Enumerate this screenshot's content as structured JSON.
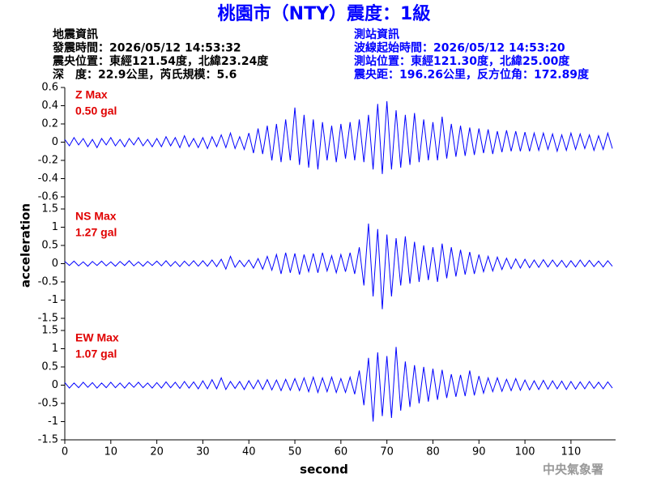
{
  "header": {
    "title": "桃園市（NTY）震度：1級",
    "left_info": [
      "地震資訊",
      "發震時間：2026/05/12 14:53:32",
      "震央位置：東經121.54度，北緯23.24度",
      "深　度：22.9公里，芮氏規模：5.6"
    ],
    "right_info": [
      "測站資訊",
      "波線起始時間：2026/05/12 14:53:20",
      "測站位置：東經121.30度，北緯25.00度",
      "震央距：196.26公里，反方位角：172.89度"
    ],
    "watermark": "中央氣象署"
  },
  "chart_data": [
    {
      "type": "line",
      "annotations": [
        "Z Max",
        "0.50 gal"
      ],
      "xlim": [
        0,
        119.7
      ],
      "ylim": [
        -0.6,
        0.6
      ],
      "yticks": [
        0.6,
        0.4,
        0.2,
        0,
        -0.2,
        -0.4,
        -0.6
      ],
      "series": [
        {
          "name": "Z",
          "color": "#0000ff",
          "x": [
            0,
            1,
            2,
            3,
            4,
            5,
            6,
            7,
            8,
            9,
            10,
            11,
            12,
            13,
            14,
            15,
            16,
            17,
            18,
            19,
            20,
            21,
            22,
            23,
            24,
            25,
            26,
            27,
            28,
            29,
            30,
            31,
            32,
            33,
            34,
            35,
            36,
            37,
            38,
            39,
            40,
            41,
            42,
            43,
            44,
            45,
            46,
            47,
            48,
            49,
            50,
            51,
            52,
            53,
            54,
            55,
            56,
            57,
            58,
            59,
            60,
            61,
            62,
            63,
            64,
            65,
            66,
            67,
            68,
            69,
            70,
            71,
            72,
            73,
            74,
            75,
            76,
            77,
            78,
            79,
            80,
            81,
            82,
            83,
            84,
            85,
            86,
            87,
            88,
            89,
            90,
            91,
            92,
            93,
            94,
            95,
            96,
            97,
            98,
            99,
            100,
            101,
            102,
            103,
            104,
            105,
            106,
            107,
            108,
            109,
            110,
            111,
            112,
            113,
            114,
            115,
            116,
            117,
            118,
            119
          ],
          "values": [
            0.03,
            -0.04,
            0.05,
            -0.03,
            0.04,
            -0.05,
            0.03,
            -0.06,
            0.04,
            -0.03,
            0.05,
            -0.04,
            0.03,
            -0.05,
            0.04,
            -0.03,
            0.05,
            -0.04,
            0.03,
            -0.05,
            0.04,
            -0.05,
            0.06,
            -0.04,
            0.05,
            -0.06,
            0.07,
            -0.05,
            0.04,
            -0.06,
            0.05,
            -0.07,
            0.06,
            -0.05,
            0.08,
            -0.06,
            0.1,
            -0.07,
            0.06,
            -0.08,
            0.1,
            -0.12,
            0.15,
            -0.13,
            0.18,
            -0.2,
            0.2,
            -0.22,
            0.25,
            -0.2,
            0.38,
            -0.25,
            0.3,
            -0.28,
            0.25,
            -0.3,
            0.22,
            -0.2,
            0.18,
            -0.22,
            0.2,
            -0.18,
            0.22,
            -0.2,
            0.25,
            -0.22,
            0.3,
            -0.3,
            0.42,
            -0.35,
            0.45,
            -0.3,
            0.35,
            -0.28,
            0.3,
            -0.25,
            0.32,
            -0.22,
            0.25,
            -0.2,
            0.22,
            -0.2,
            0.28,
            -0.18,
            0.2,
            -0.16,
            0.18,
            -0.15,
            0.16,
            -0.14,
            0.15,
            -0.12,
            0.14,
            -0.13,
            0.12,
            -0.11,
            0.13,
            -0.1,
            0.12,
            -0.1,
            0.11,
            -0.1,
            0.1,
            -0.09,
            0.1,
            -0.08,
            0.09,
            -0.1,
            0.08,
            -0.09,
            0.1,
            -0.08,
            0.09,
            -0.07,
            0.08,
            -0.09,
            0.07,
            -0.08,
            0.1,
            -0.07
          ]
        }
      ]
    },
    {
      "type": "line",
      "annotations": [
        "NS Max",
        "1.27 gal"
      ],
      "y_label": "acceleration",
      "xlim": [
        0,
        119.7
      ],
      "ylim": [
        -1.5,
        1.5
      ],
      "yticks": [
        1.5,
        1,
        0.5,
        0,
        -0.5,
        -1,
        -1.5
      ],
      "series": [
        {
          "name": "NS",
          "color": "#0000ff",
          "x": [
            0,
            1,
            2,
            3,
            4,
            5,
            6,
            7,
            8,
            9,
            10,
            11,
            12,
            13,
            14,
            15,
            16,
            17,
            18,
            19,
            20,
            21,
            22,
            23,
            24,
            25,
            26,
            27,
            28,
            29,
            30,
            31,
            32,
            33,
            34,
            35,
            36,
            37,
            38,
            39,
            40,
            41,
            42,
            43,
            44,
            45,
            46,
            47,
            48,
            49,
            50,
            51,
            52,
            53,
            54,
            55,
            56,
            57,
            58,
            59,
            60,
            61,
            62,
            63,
            64,
            65,
            66,
            67,
            68,
            69,
            70,
            71,
            72,
            73,
            74,
            75,
            76,
            77,
            78,
            79,
            80,
            81,
            82,
            83,
            84,
            85,
            86,
            87,
            88,
            89,
            90,
            91,
            92,
            93,
            94,
            95,
            96,
            97,
            98,
            99,
            100,
            101,
            102,
            103,
            104,
            105,
            106,
            107,
            108,
            109,
            110,
            111,
            112,
            113,
            114,
            115,
            116,
            117,
            118,
            119
          ],
          "values": [
            0.06,
            -0.05,
            0.07,
            -0.06,
            0.05,
            -0.07,
            0.06,
            -0.05,
            0.07,
            -0.06,
            0.05,
            -0.07,
            0.06,
            -0.05,
            0.08,
            -0.06,
            0.05,
            -0.07,
            0.06,
            -0.05,
            0.07,
            -0.06,
            0.08,
            -0.07,
            0.06,
            -0.08,
            0.07,
            -0.06,
            0.08,
            -0.07,
            0.08,
            -0.07,
            0.1,
            -0.08,
            0.12,
            -0.15,
            0.2,
            -0.1,
            0.09,
            -0.08,
            0.1,
            -0.12,
            0.14,
            -0.15,
            0.2,
            -0.18,
            0.25,
            -0.28,
            0.3,
            -0.25,
            0.28,
            -0.3,
            0.25,
            -0.22,
            0.28,
            -0.25,
            0.3,
            -0.2,
            0.22,
            -0.25,
            0.25,
            -0.22,
            0.3,
            -0.28,
            0.45,
            -0.6,
            1.1,
            -0.9,
            0.95,
            -1.25,
            0.8,
            -0.9,
            0.7,
            -0.6,
            0.75,
            -0.55,
            0.6,
            -0.5,
            0.5,
            -0.45,
            0.45,
            -0.5,
            0.55,
            -0.4,
            0.45,
            -0.35,
            0.38,
            -0.3,
            0.32,
            -0.28,
            0.25,
            -0.22,
            0.2,
            -0.2,
            0.18,
            -0.16,
            0.15,
            -0.14,
            0.13,
            -0.12,
            0.12,
            -0.11,
            0.1,
            -0.1,
            0.11,
            -0.09,
            0.1,
            -0.08,
            0.09,
            -0.1,
            0.08,
            -0.09,
            0.1,
            -0.08,
            0.09,
            -0.08,
            0.07,
            -0.09,
            0.08,
            -0.07
          ]
        }
      ]
    },
    {
      "type": "line",
      "annotations": [
        "EW Max",
        "1.07 gal"
      ],
      "x_label": "second",
      "xlim": [
        0,
        119.7
      ],
      "xticks": [
        0,
        10,
        20,
        30,
        40,
        50,
        60,
        70,
        80,
        90,
        100,
        110
      ],
      "ylim": [
        -1.5,
        1.5
      ],
      "yticks": [
        1.5,
        1,
        0.5,
        0,
        -0.5,
        -1,
        -1.5
      ],
      "series": [
        {
          "name": "EW",
          "color": "#0000ff",
          "x": [
            0,
            1,
            2,
            3,
            4,
            5,
            6,
            7,
            8,
            9,
            10,
            11,
            12,
            13,
            14,
            15,
            16,
            17,
            18,
            19,
            20,
            21,
            22,
            23,
            24,
            25,
            26,
            27,
            28,
            29,
            30,
            31,
            32,
            33,
            34,
            35,
            36,
            37,
            38,
            39,
            40,
            41,
            42,
            43,
            44,
            45,
            46,
            47,
            48,
            49,
            50,
            51,
            52,
            53,
            54,
            55,
            56,
            57,
            58,
            59,
            60,
            61,
            62,
            63,
            64,
            65,
            66,
            67,
            68,
            69,
            70,
            71,
            72,
            73,
            74,
            75,
            76,
            77,
            78,
            79,
            80,
            81,
            82,
            83,
            84,
            85,
            86,
            87,
            88,
            89,
            90,
            91,
            92,
            93,
            94,
            95,
            96,
            97,
            98,
            99,
            100,
            101,
            102,
            103,
            104,
            105,
            106,
            107,
            108,
            109,
            110,
            111,
            112,
            113,
            114,
            115,
            116,
            117,
            118,
            119
          ],
          "values": [
            0.07,
            -0.08,
            0.06,
            -0.07,
            0.08,
            -0.06,
            0.07,
            -0.08,
            0.06,
            -0.07,
            0.08,
            -0.07,
            0.06,
            -0.08,
            0.07,
            -0.06,
            0.08,
            -0.07,
            0.06,
            -0.08,
            0.07,
            -0.08,
            0.09,
            -0.07,
            0.08,
            -0.09,
            0.1,
            -0.08,
            0.09,
            -0.1,
            0.12,
            -0.1,
            0.15,
            -0.1,
            0.2,
            -0.12,
            0.1,
            -0.09,
            0.1,
            -0.12,
            0.12,
            -0.1,
            0.14,
            -0.12,
            0.15,
            -0.13,
            0.14,
            -0.15,
            0.16,
            -0.14,
            0.18,
            -0.15,
            0.2,
            -0.18,
            0.22,
            -0.2,
            0.2,
            -0.18,
            0.22,
            -0.2,
            0.18,
            -0.2,
            0.22,
            -0.25,
            0.4,
            -0.55,
            0.75,
            -1.0,
            0.9,
            -0.85,
            0.8,
            -0.9,
            1.05,
            -0.7,
            0.65,
            -0.6,
            0.55,
            -0.5,
            0.5,
            -0.45,
            0.45,
            -0.4,
            0.42,
            -0.35,
            0.3,
            -0.32,
            0.28,
            -0.3,
            0.4,
            -0.28,
            0.25,
            -0.22,
            0.2,
            -0.18,
            0.2,
            -0.17,
            0.16,
            -0.15,
            0.18,
            -0.14,
            0.14,
            -0.13,
            0.12,
            -0.12,
            0.13,
            -0.11,
            0.12,
            -0.1,
            0.11,
            -0.12,
            0.1,
            -0.11,
            0.09,
            -0.1,
            0.1,
            -0.09,
            0.08,
            -0.1,
            0.09,
            -0.08
          ]
        }
      ]
    }
  ]
}
